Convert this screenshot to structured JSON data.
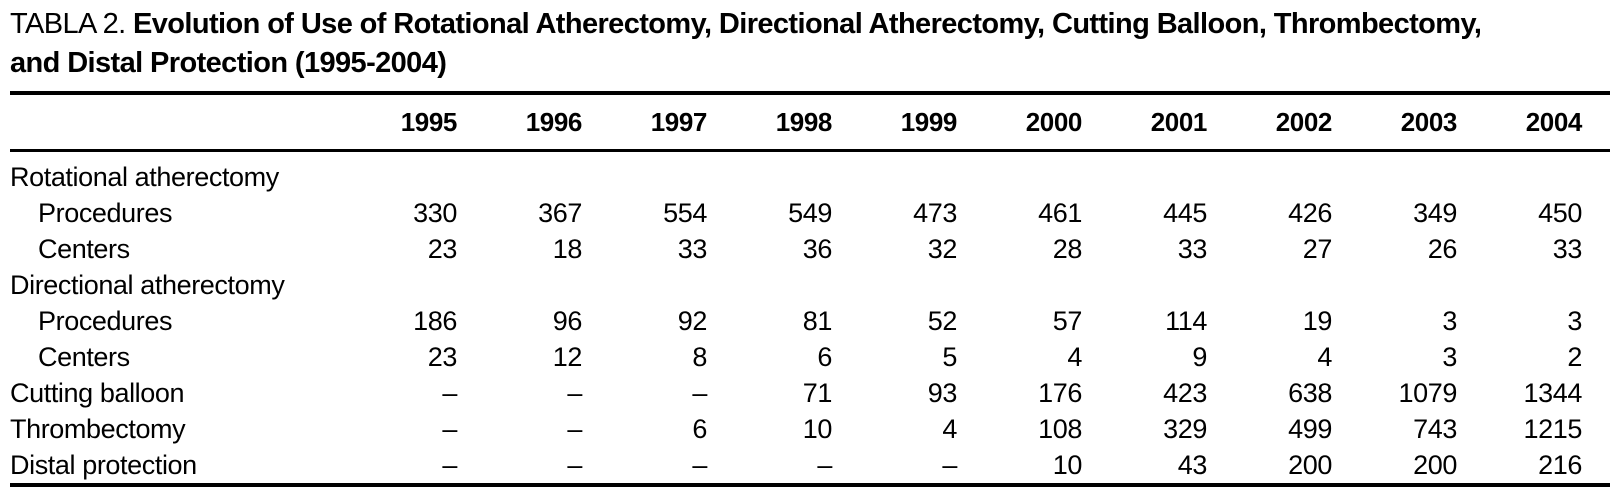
{
  "colors": {
    "text": "#000000",
    "background": "#ffffff",
    "rule": "#000000"
  },
  "title": {
    "prefix": "TABLA 2.",
    "bold_line1": "Evolution of Use of Rotational Atherectomy, Directional Atherectomy, Cutting Balloon, Thrombectomy,",
    "bold_line2": "and Distal Protection (1995-2004)"
  },
  "table": {
    "columns": [
      "1995",
      "1996",
      "1997",
      "1998",
      "1999",
      "2000",
      "2001",
      "2002",
      "2003",
      "2004"
    ],
    "rows": [
      {
        "label": "Rotational atherectomy",
        "indent": false,
        "values": []
      },
      {
        "label": "Procedures",
        "indent": true,
        "values": [
          "330",
          "367",
          "554",
          "549",
          "473",
          "461",
          "445",
          "426",
          "349",
          "450"
        ]
      },
      {
        "label": "Centers",
        "indent": true,
        "values": [
          "23",
          "18",
          "33",
          "36",
          "32",
          "28",
          "33",
          "27",
          "26",
          "33"
        ]
      },
      {
        "label": "Directional atherectomy",
        "indent": false,
        "values": []
      },
      {
        "label": "Procedures",
        "indent": true,
        "values": [
          "186",
          "96",
          "92",
          "81",
          "52",
          "57",
          "114",
          "19",
          "3",
          "3"
        ]
      },
      {
        "label": "Centers",
        "indent": true,
        "values": [
          "23",
          "12",
          "8",
          "6",
          "5",
          "4",
          "9",
          "4",
          "3",
          "2"
        ]
      },
      {
        "label": "Cutting balloon",
        "indent": false,
        "values": [
          "–",
          "–",
          "–",
          "71",
          "93",
          "176",
          "423",
          "638",
          "1079",
          "1344"
        ]
      },
      {
        "label": "Thrombectomy",
        "indent": false,
        "values": [
          "–",
          "–",
          "6",
          "10",
          "4",
          "108",
          "329",
          "499",
          "743",
          "1215"
        ]
      },
      {
        "label": "Distal protection",
        "indent": false,
        "values": [
          "–",
          "–",
          "–",
          "–",
          "–",
          "10",
          "43",
          "200",
          "200",
          "216"
        ]
      }
    ]
  }
}
